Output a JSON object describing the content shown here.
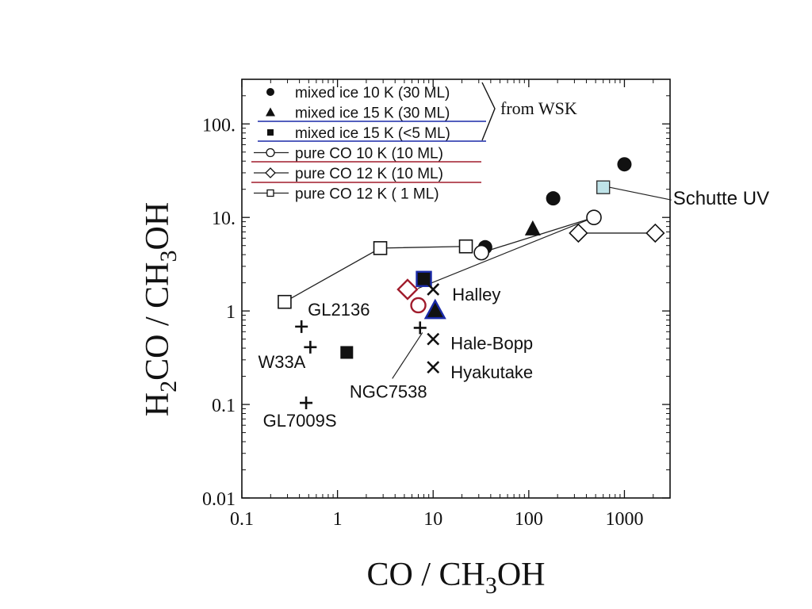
{
  "chart_data": {
    "type": "scatter",
    "xscale": "log",
    "yscale": "log",
    "xlim": [
      0.1,
      3000
    ],
    "ylim": [
      0.01,
      300
    ],
    "xlabel_parts": [
      "CO / CH",
      "3",
      "OH"
    ],
    "ylabel_parts": [
      "H",
      "2",
      "CO / CH",
      "3",
      "OH"
    ],
    "x_ticks": [
      0.1,
      1,
      10,
      100,
      1000
    ],
    "x_tick_labels": [
      "0.1",
      "1",
      "10",
      "100",
      "1000"
    ],
    "y_ticks": [
      0.01,
      0.1,
      1,
      10,
      100
    ],
    "y_tick_labels": [
      "0.01",
      "0.1",
      "1",
      "10.",
      "100."
    ],
    "legend": {
      "placement": "top-left",
      "entries": [
        {
          "marker": "filled-circle",
          "label": "mixed ice 10 K (30 ML)"
        },
        {
          "marker": "filled-triangle",
          "label": "mixed ice 15 K (30 ML)"
        },
        {
          "marker": "filled-square",
          "label": "mixed ice 15 K (<5 ML)"
        },
        {
          "marker": "open-circle-line",
          "label": "pure CO 10 K (10 ML)"
        },
        {
          "marker": "open-diamond-line",
          "label": "pure CO 12 K (10 ML)"
        },
        {
          "marker": "open-square-line",
          "label": "pure CO 12 K (  1 ML)"
        }
      ],
      "group_label": "from WSK"
    },
    "series": [
      {
        "name": "mixed ice 10 K (30 ML)",
        "marker": "filled-circle",
        "points": [
          [
            35,
            4.8
          ],
          [
            180,
            16
          ],
          [
            1000,
            37
          ]
        ]
      },
      {
        "name": "mixed ice 15 K (30 ML)",
        "marker": "filled-triangle",
        "points": [
          [
            110,
            7.5
          ]
        ]
      },
      {
        "name": "mixed ice 15 K (<5 ML)",
        "marker": "filled-square",
        "points": [
          [
            1.25,
            0.36
          ]
        ]
      },
      {
        "name": "pure CO 10 K (10 ML)",
        "marker": "open-circle",
        "line": true,
        "points": [
          [
            32,
            4.2
          ],
          [
            480,
            10
          ]
        ]
      },
      {
        "name": "pure CO 12 K (10 ML)",
        "marker": "open-diamond",
        "line": true,
        "points": [
          [
            330,
            6.8
          ],
          [
            2100,
            6.8
          ]
        ]
      },
      {
        "name": "pure CO 12 K (  1 ML)",
        "marker": "open-square",
        "line": true,
        "points": [
          [
            0.28,
            1.25
          ],
          [
            2.8,
            4.7
          ],
          [
            22,
            4.9
          ]
        ]
      },
      {
        "marker": "highlight-diamond",
        "color": "#a01c2c",
        "points": [
          [
            5.4,
            1.7
          ]
        ]
      },
      {
        "marker": "highlight-circle",
        "color": "#a01c2c",
        "points": [
          [
            7,
            1.15
          ]
        ]
      },
      {
        "marker": "highlight-square",
        "color": "#1a2aa8",
        "points": [
          [
            8,
            2.2
          ]
        ]
      },
      {
        "marker": "highlight-triangle",
        "color": "#1a2aa8",
        "points": [
          [
            10.5,
            1.0
          ]
        ]
      },
      {
        "marker": "light-square",
        "color": "#bfe3e8",
        "points": [
          [
            600,
            21
          ]
        ]
      },
      {
        "marker": "plus",
        "points": [
          [
            0.42,
            0.68
          ],
          [
            0.52,
            0.41
          ],
          [
            0.47,
            0.104
          ],
          [
            7.3,
            0.66
          ]
        ]
      },
      {
        "marker": "cross",
        "points": [
          [
            10,
            1.7
          ],
          [
            10,
            0.5
          ],
          [
            10,
            0.25
          ]
        ]
      }
    ],
    "annotations": [
      {
        "text": "GL2136",
        "x": 0.42,
        "y": 0.68
      },
      {
        "text": "W33A",
        "x": 0.52,
        "y": 0.41
      },
      {
        "text": "GL7009S",
        "x": 0.47,
        "y": 0.104
      },
      {
        "text": "NGC7538",
        "x": 7.3,
        "y": 0.66
      },
      {
        "text": "Halley",
        "x": 10,
        "y": 1.7
      },
      {
        "text": "Hale-Bopp",
        "x": 10,
        "y": 0.5
      },
      {
        "text": "Hyakutake",
        "x": 10,
        "y": 0.25
      },
      {
        "text": "Schutte UV",
        "x": 600,
        "y": 21
      }
    ]
  }
}
